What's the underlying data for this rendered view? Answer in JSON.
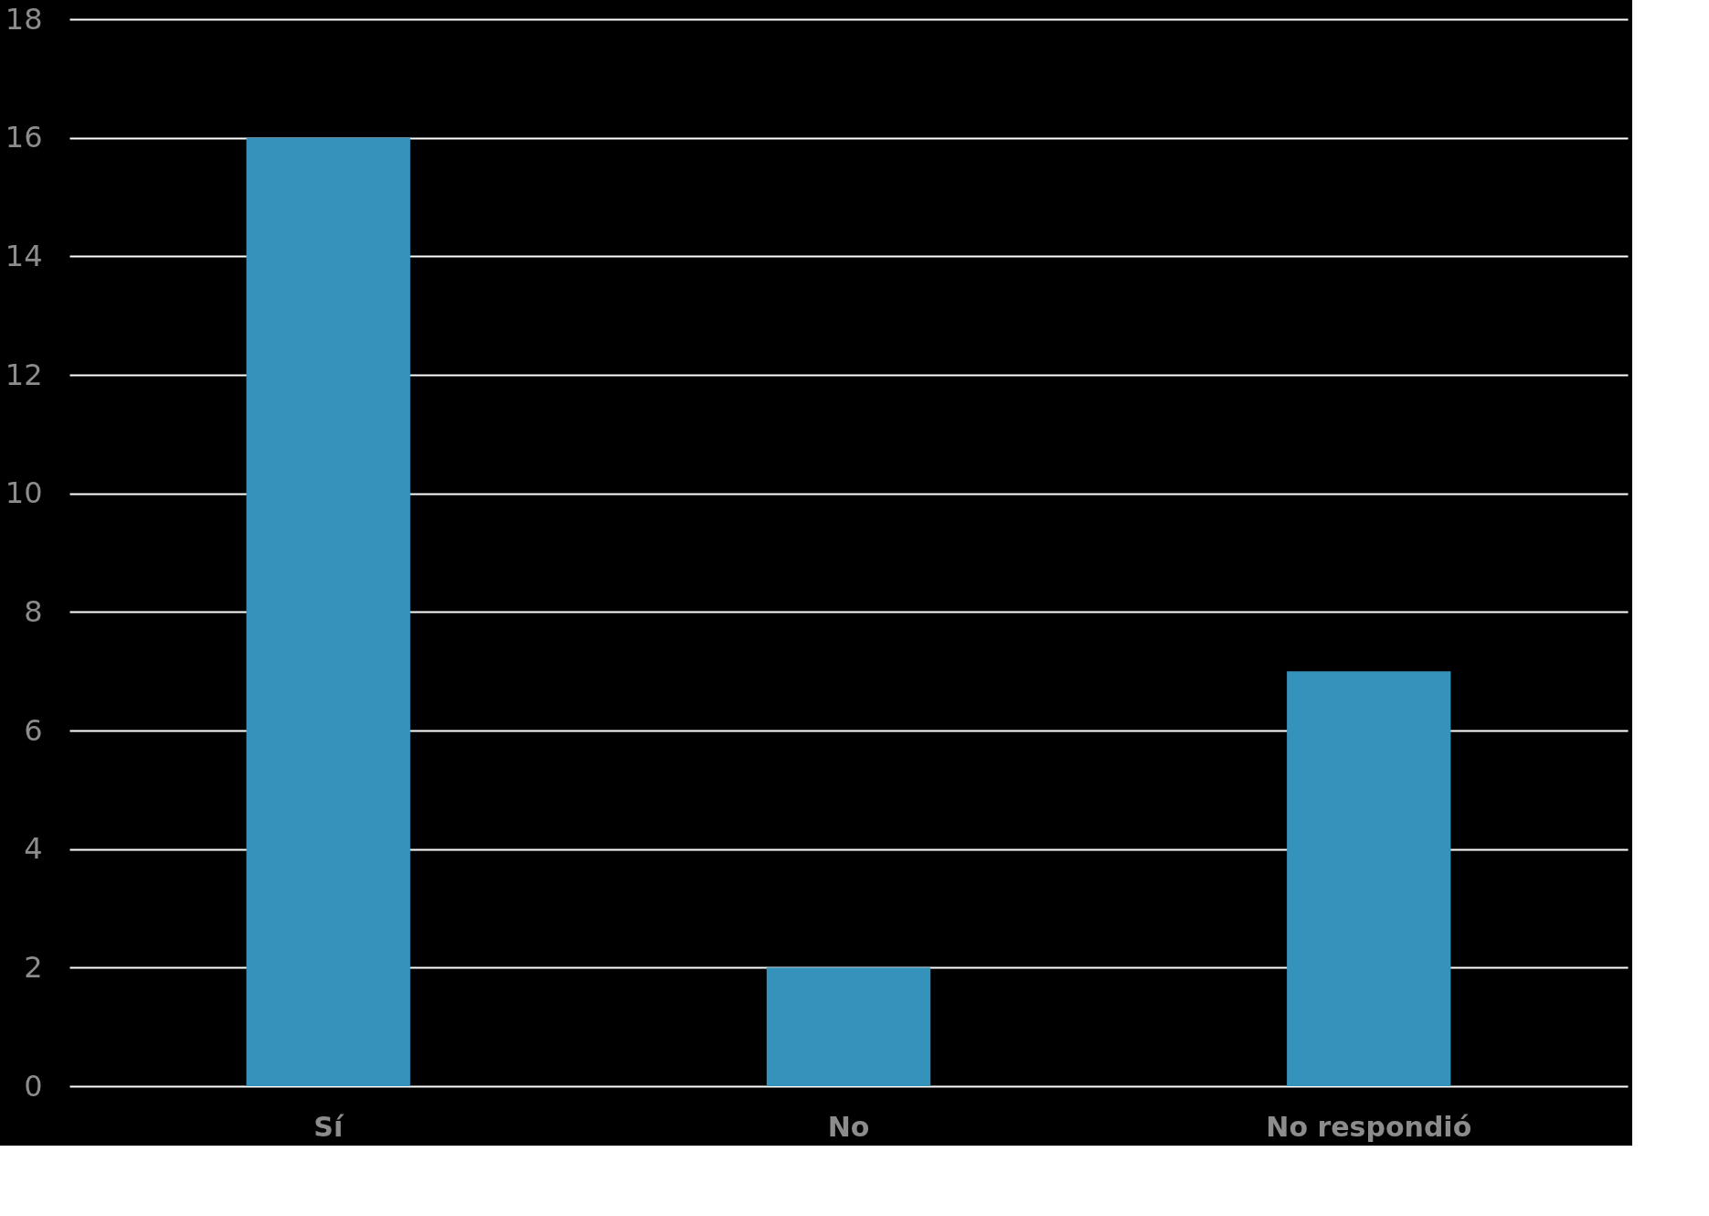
{
  "chart_data": {
    "type": "bar",
    "categories": [
      "Sí",
      "No",
      "No respondió"
    ],
    "values": [
      16,
      2,
      7
    ],
    "color": "#3593bb",
    "ylim": [
      0,
      18
    ],
    "yticks": [
      0,
      2,
      4,
      6,
      8,
      10,
      12,
      14,
      16,
      18
    ],
    "grid": "y"
  }
}
